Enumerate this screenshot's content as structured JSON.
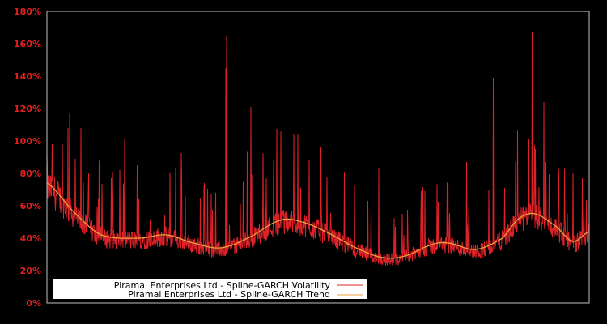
{
  "chart_data": {
    "type": "line",
    "title": "",
    "xlabel": "",
    "ylabel": "",
    "ylim": [
      0,
      180
    ],
    "y_tick_labels": [
      "0%",
      "20%",
      "40%",
      "60%",
      "80%",
      "100%",
      "120%",
      "140%",
      "160%",
      "180%"
    ],
    "y_tick_values": [
      0,
      20,
      40,
      60,
      80,
      100,
      120,
      140,
      160,
      180
    ],
    "grid": false,
    "legend_position": "lower left",
    "background": "#000000",
    "series": [
      {
        "name": "Piramal Enterprises Ltd - Spline-GARCH Volatility",
        "color": "#dc2128",
        "style": "dense noisy line (daily volatility)",
        "baseline_offset_range": [
          -8,
          6
        ],
        "notable_peaks": [
          {
            "x_frac": 0.0,
            "value": 93
          },
          {
            "x_frac": 0.01,
            "value": 98
          },
          {
            "x_frac": 0.028,
            "value": 98
          },
          {
            "x_frac": 0.042,
            "value": 117
          },
          {
            "x_frac": 0.063,
            "value": 108
          },
          {
            "x_frac": 0.143,
            "value": 101
          },
          {
            "x_frac": 0.33,
            "value": 145
          },
          {
            "x_frac": 0.331,
            "value": 165
          },
          {
            "x_frac": 0.376,
            "value": 121
          },
          {
            "x_frac": 0.418,
            "value": 88
          },
          {
            "x_frac": 0.463,
            "value": 104
          },
          {
            "x_frac": 0.505,
            "value": 96
          },
          {
            "x_frac": 0.612,
            "value": 83
          },
          {
            "x_frac": 0.774,
            "value": 87
          },
          {
            "x_frac": 0.823,
            "value": 139
          },
          {
            "x_frac": 0.895,
            "value": 167
          },
          {
            "x_frac": 0.92,
            "value": 87
          }
        ]
      },
      {
        "name": "Piramal Enterprises Ltd - Spline-GARCH Trend",
        "color": "#e8a33a",
        "style": "smooth spline",
        "knots": [
          {
            "x_frac": 0.0,
            "value": 74
          },
          {
            "x_frac": 0.05,
            "value": 56
          },
          {
            "x_frac": 0.1,
            "value": 42
          },
          {
            "x_frac": 0.17,
            "value": 40
          },
          {
            "x_frac": 0.22,
            "value": 42
          },
          {
            "x_frac": 0.27,
            "value": 37
          },
          {
            "x_frac": 0.32,
            "value": 34
          },
          {
            "x_frac": 0.37,
            "value": 40
          },
          {
            "x_frac": 0.43,
            "value": 51
          },
          {
            "x_frac": 0.47,
            "value": 50
          },
          {
            "x_frac": 0.52,
            "value": 43
          },
          {
            "x_frac": 0.57,
            "value": 34
          },
          {
            "x_frac": 0.62,
            "value": 28
          },
          {
            "x_frac": 0.66,
            "value": 29
          },
          {
            "x_frac": 0.71,
            "value": 36
          },
          {
            "x_frac": 0.74,
            "value": 37
          },
          {
            "x_frac": 0.79,
            "value": 33
          },
          {
            "x_frac": 0.84,
            "value": 40
          },
          {
            "x_frac": 0.87,
            "value": 52
          },
          {
            "x_frac": 0.9,
            "value": 55
          },
          {
            "x_frac": 0.94,
            "value": 47
          },
          {
            "x_frac": 0.97,
            "value": 38
          },
          {
            "x_frac": 1.0,
            "value": 44
          }
        ]
      }
    ]
  },
  "legend": {
    "items": [
      {
        "label": "Piramal Enterprises Ltd - Spline-GARCH Volatility",
        "color": "#dc2128"
      },
      {
        "label": "Piramal Enterprises Ltd - Spline-GARCH Trend",
        "color": "#e8a33a"
      }
    ]
  },
  "axis": {
    "tick_color": "#e02020",
    "frame_color": "#bfbfbf"
  }
}
